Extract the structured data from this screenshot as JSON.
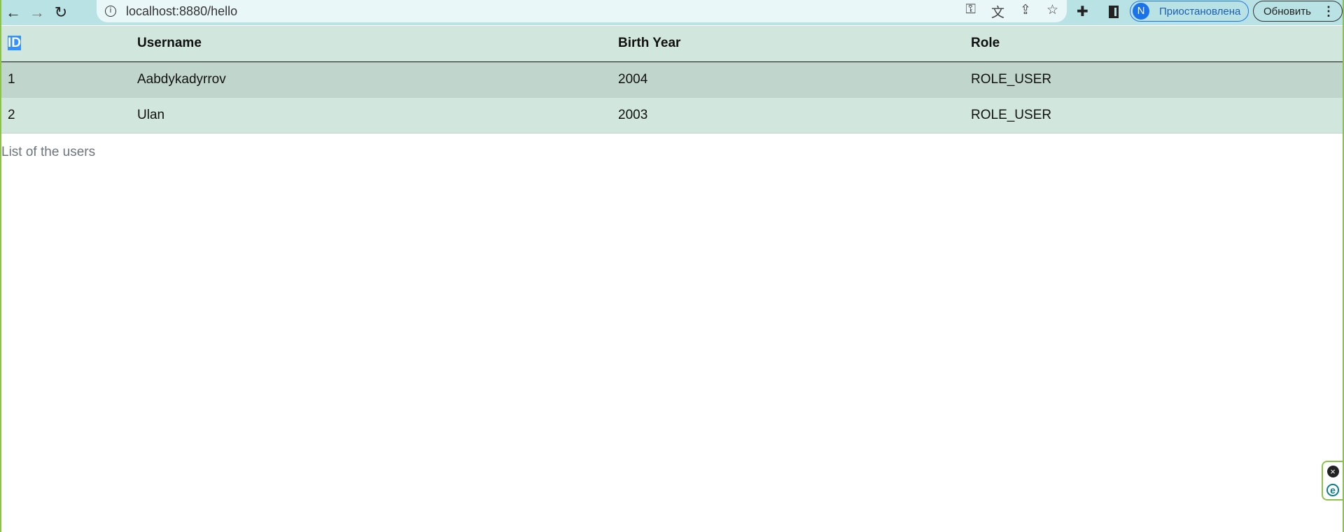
{
  "browser": {
    "url": "localhost:8880/hello",
    "profile_initial": "N",
    "profile_status": "Приостановлена",
    "update_label": "Обновить",
    "icons": [
      "back-icon",
      "forward-icon",
      "reload-icon",
      "info-icon",
      "key-icon",
      "translate-icon",
      "share-icon",
      "star-icon",
      "puzzle-icon",
      "side-panel-icon",
      "menu-dots-icon"
    ]
  },
  "table": {
    "headers": [
      "ID",
      "Username",
      "Birth Year",
      "Role"
    ],
    "rows": [
      [
        "1",
        "Aabdykadyrrov",
        "2004",
        "ROLE_USER"
      ],
      [
        "2",
        "Ulan",
        "2003",
        "ROLE_USER"
      ]
    ],
    "caption": "List of the users"
  },
  "colors": {
    "header_bg": "#d1e7dd",
    "striped_row": "#c0d6cc",
    "toolbar": "#b9e2e5",
    "accent": "#1a73e8"
  }
}
